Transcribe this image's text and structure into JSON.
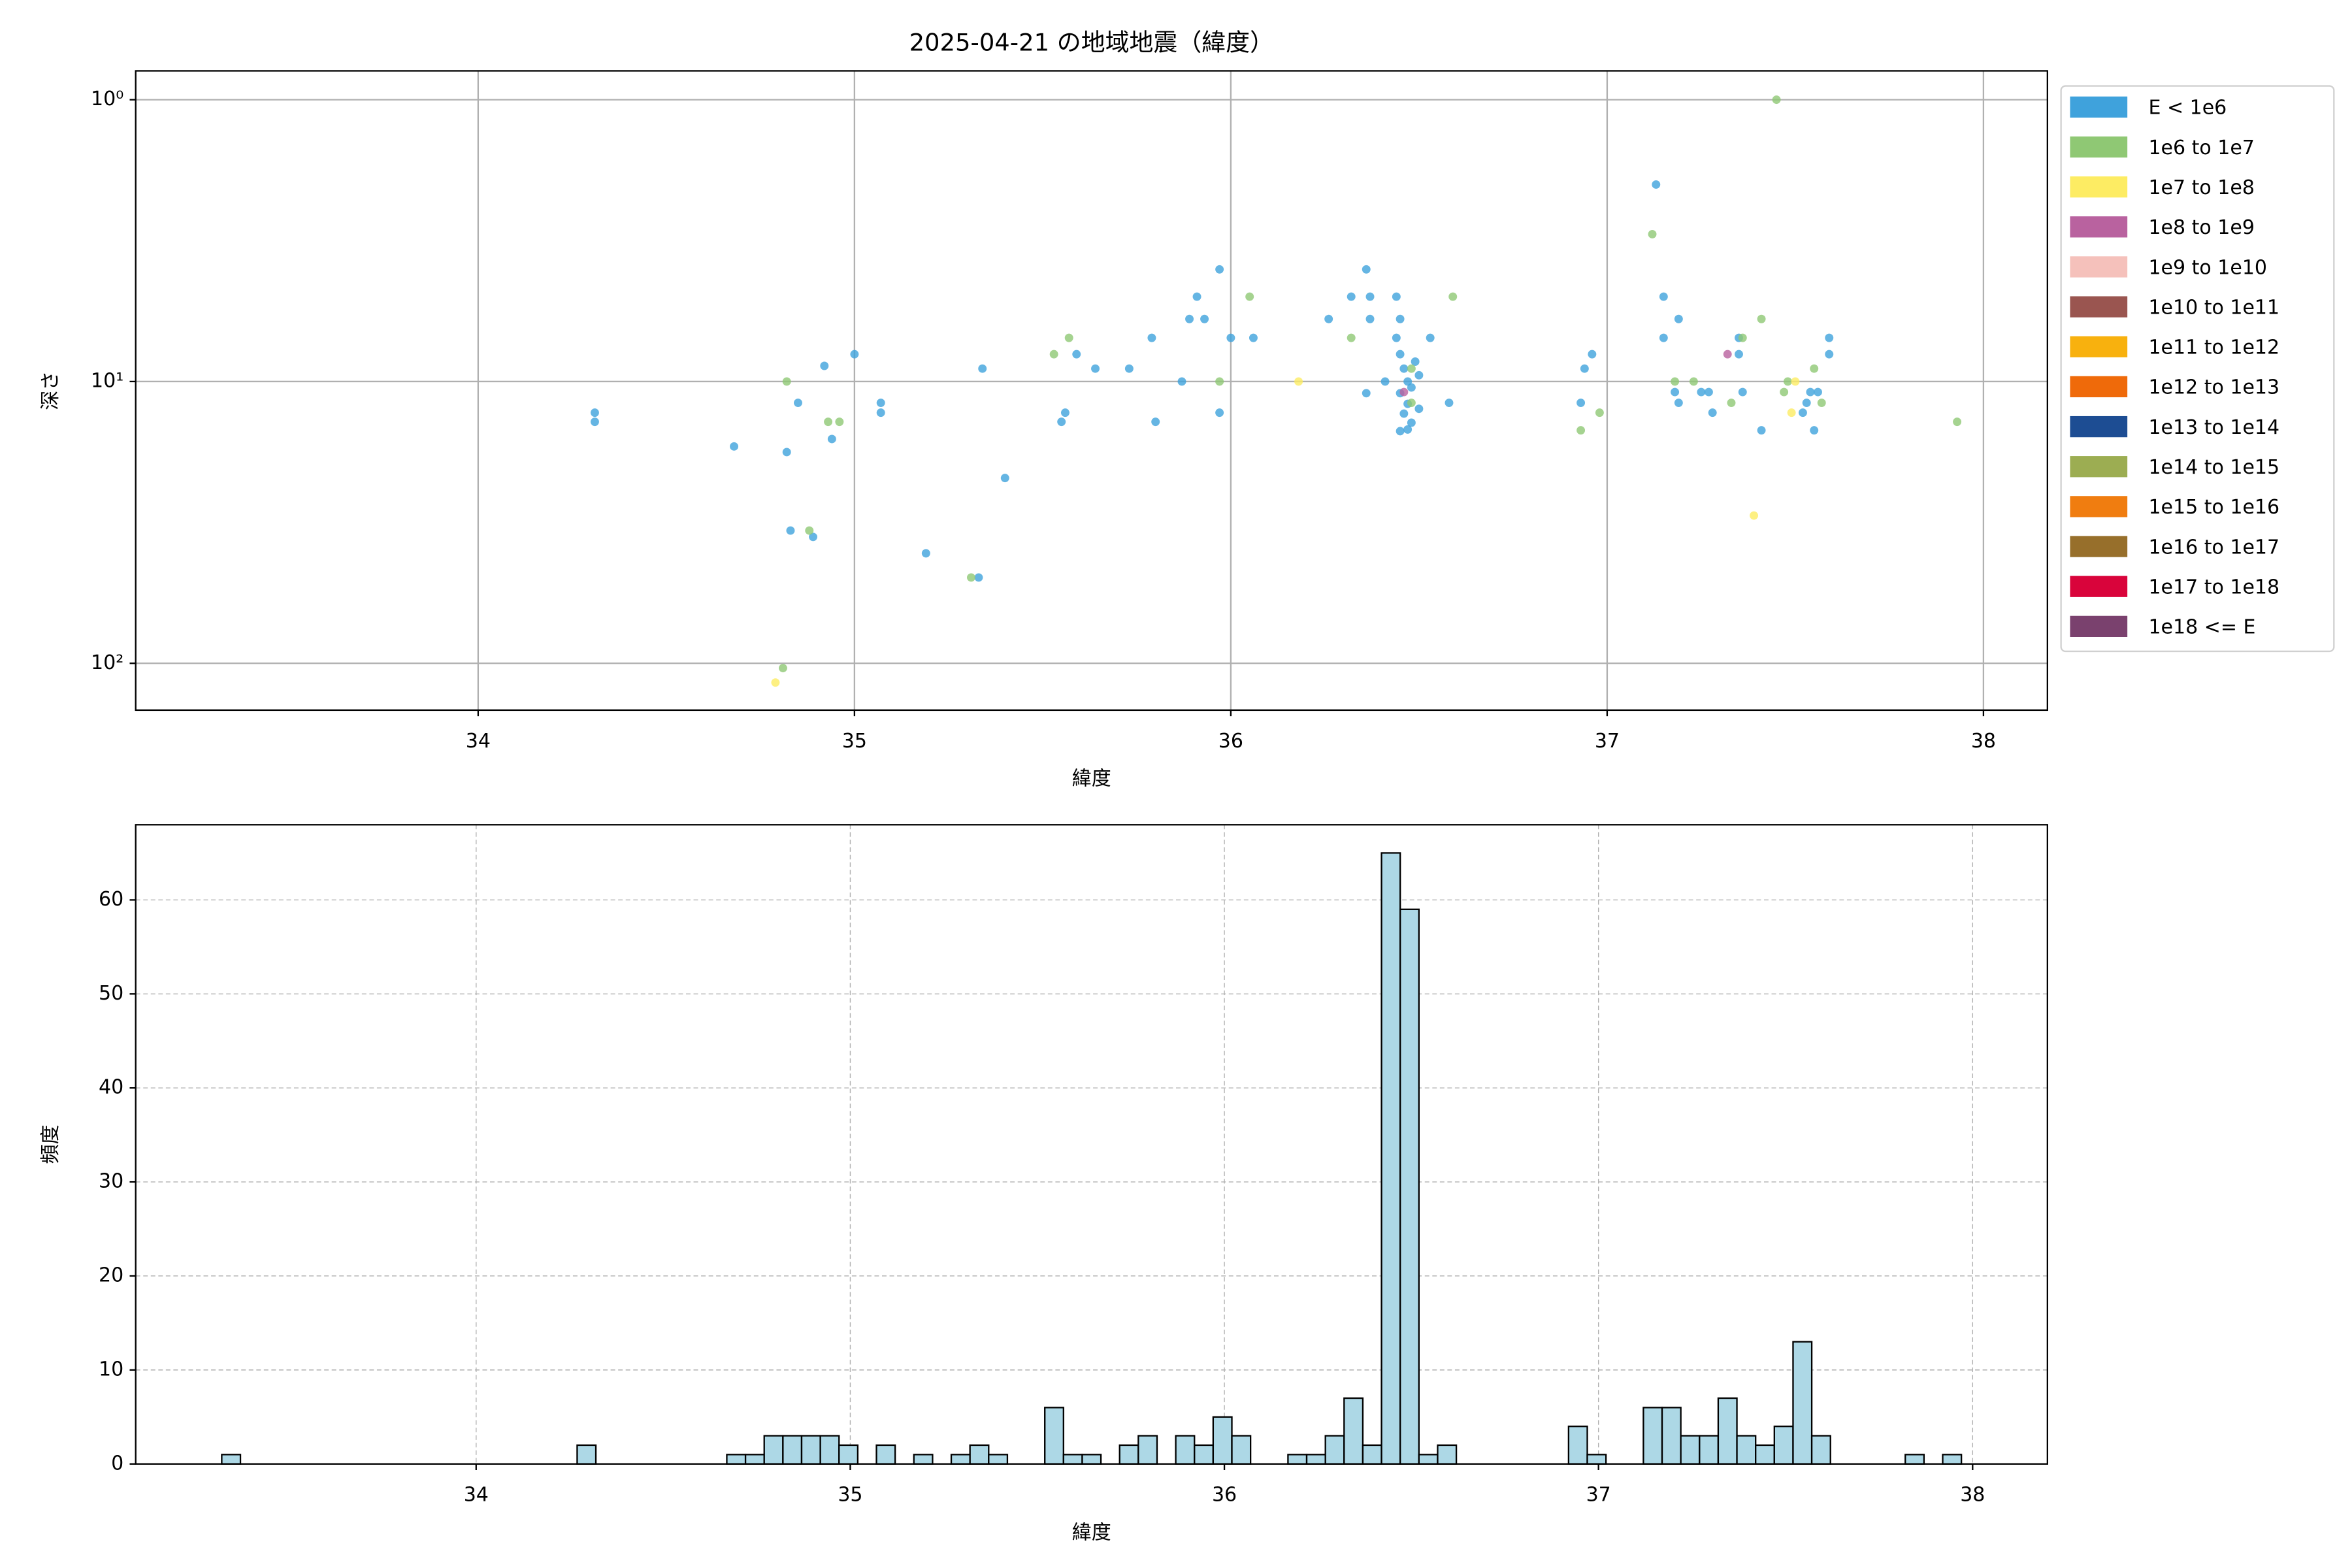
{
  "chart_data": [
    {
      "type": "scatter",
      "title": "2025-04-21 の地域地震（緯度）",
      "x_label": "緯度",
      "y_label": "深さ",
      "xlim": [
        33.09,
        38.17
      ],
      "xticks": [
        34,
        35,
        36,
        37,
        38
      ],
      "ylim": [
        0.79,
        146.6
      ],
      "y_scale": "log",
      "y_inverted": true,
      "yticks": [
        {
          "value": 1,
          "label": "10⁰"
        },
        {
          "value": 10,
          "label": "10¹"
        },
        {
          "value": 100,
          "label": "10²"
        }
      ],
      "grid": true,
      "legend": "outside upper right",
      "series": [
        {
          "name": "E < 1e6",
          "color": "#3fa2dc",
          "x": [
            34.31,
            34.31,
            34.68,
            34.82,
            34.85,
            34.83,
            34.89,
            34.92,
            34.94,
            35.0,
            35.07,
            35.07,
            35.19,
            35.33,
            35.34,
            35.4,
            35.55,
            35.56,
            35.59,
            35.64,
            35.73,
            35.79,
            35.8,
            35.87,
            35.89,
            35.91,
            35.93,
            35.97,
            35.97,
            36.0,
            36.06,
            36.26,
            36.32,
            36.36,
            36.37,
            36.37,
            36.36,
            36.41,
            36.44,
            36.45,
            36.44,
            36.45,
            36.46,
            36.47,
            36.45,
            36.47,
            36.46,
            36.48,
            36.45,
            36.49,
            36.5,
            36.48,
            36.47,
            36.5,
            36.53,
            36.58,
            36.93,
            36.94,
            36.96,
            37.13,
            37.15,
            37.15,
            37.19,
            37.18,
            37.19,
            37.25,
            37.27,
            37.28,
            37.35,
            37.35,
            37.36,
            37.41,
            37.52,
            37.53,
            37.54,
            37.55,
            37.56,
            37.59,
            37.59
          ],
          "values": [
            12.9,
            13.9,
            17.0,
            17.8,
            11.9,
            33.8,
            35.6,
            8.8,
            16.0,
            8.0,
            11.9,
            12.9,
            40.7,
            49.6,
            9.0,
            22.0,
            13.9,
            12.9,
            8.0,
            9.0,
            9.0,
            7.0,
            13.9,
            10,
            6.0,
            5.0,
            6.0,
            4.0,
            12.9,
            7.0,
            7.0,
            6.0,
            5.0,
            4.0,
            5.0,
            6.0,
            11.0,
            10,
            5.0,
            6.0,
            7.0,
            8.0,
            9.0,
            10,
            11.0,
            12.0,
            13.0,
            14.0,
            15.0,
            8.5,
            12.5,
            10.5,
            14.8,
            9.5,
            7.0,
            11.9,
            11.9,
            9.0,
            8.0,
            2.0,
            5.0,
            7.0,
            6.0,
            10.9,
            11.9,
            10.9,
            10.9,
            12.9,
            7.0,
            8.0,
            10.9,
            14.9,
            12.9,
            11.9,
            10.9,
            14.9,
            10.9,
            7.0,
            8.0
          ]
        },
        {
          "name": "1e6 to 1e7",
          "color": "#8fc874",
          "x": [
            34.82,
            34.93,
            34.96,
            34.88,
            34.81,
            35.31,
            35.53,
            35.57,
            35.97,
            36.05,
            36.32,
            36.48,
            36.48,
            36.59,
            36.93,
            36.98,
            37.12,
            37.18,
            37.23,
            37.33,
            37.36,
            37.41,
            37.45,
            37.47,
            37.48,
            37.55,
            37.57,
            37.93
          ],
          "values": [
            10,
            13.9,
            13.9,
            33.8,
            104,
            49.6,
            8.0,
            7.0,
            10,
            5.0,
            7.0,
            9.0,
            11.9,
            5.0,
            14.9,
            12.9,
            3.0,
            10,
            10,
            11.9,
            7.0,
            6.0,
            1.0,
            10.9,
            10,
            9.0,
            11.9,
            13.9
          ]
        },
        {
          "name": "1e7 to 1e8",
          "color": "#fdec63",
          "x": [
            34.79,
            36.18,
            37.39,
            37.49,
            37.5
          ],
          "values": [
            117,
            10,
            29.9,
            12.9,
            10
          ]
        },
        {
          "name": "1e8 to 1e9",
          "color": "#b9629f",
          "x": [
            37.32,
            36.46
          ],
          "values": [
            8.0,
            10.9
          ]
        },
        {
          "name": "1e9 to 1e10",
          "color": "#f5c1bb",
          "x": [],
          "values": []
        },
        {
          "name": "1e10 to 1e11",
          "color": "#9a5550",
          "x": [],
          "values": []
        },
        {
          "name": "1e11 to 1e12",
          "color": "#f8b10e",
          "x": [],
          "values": []
        },
        {
          "name": "1e12 to 1e13",
          "color": "#ef6a0a",
          "x": [],
          "values": []
        },
        {
          "name": "1e13 to 1e14",
          "color": "#1d4d93",
          "x": [],
          "values": []
        },
        {
          "name": "1e14 to 1e15",
          "color": "#9cad52",
          "x": [],
          "values": []
        },
        {
          "name": "1e15 to 1e16",
          "color": "#f07d10",
          "x": [],
          "values": []
        },
        {
          "name": "1e16 to 1e17",
          "color": "#976f2b",
          "x": [],
          "values": []
        },
        {
          "name": "1e17 to 1e18",
          "color": "#d9043b",
          "x": [],
          "values": []
        },
        {
          "name": "1e18 <= E",
          "color": "#7a416e",
          "x": [],
          "values": []
        }
      ]
    },
    {
      "type": "histogram",
      "x_label": "緯度",
      "y_label": "頻度",
      "color": "#add8e6",
      "edge_color": "#000000",
      "xlim": [
        33.09,
        38.2
      ],
      "xticks": [
        34,
        35,
        36,
        37,
        38
      ],
      "ylim": [
        0,
        68
      ],
      "yticks": [
        0,
        10,
        20,
        30,
        40,
        50,
        60
      ],
      "grid": true,
      "bins": [
        33.32,
        33.37,
        33.42,
        33.47,
        33.52,
        33.57,
        33.62,
        33.67,
        33.72,
        33.77,
        33.82,
        33.87,
        33.92,
        33.97,
        34.02,
        34.07,
        34.12,
        34.17,
        34.22,
        34.27,
        34.32,
        34.37,
        34.42,
        34.47,
        34.52,
        34.57,
        34.62,
        34.67,
        34.72,
        34.77,
        34.82,
        34.87,
        34.92,
        34.97,
        35.02,
        35.07,
        35.12,
        35.17,
        35.22,
        35.27,
        35.32,
        35.37,
        35.42,
        35.47,
        35.52,
        35.57,
        35.62,
        35.67,
        35.72,
        35.77,
        35.82,
        35.87,
        35.92,
        35.97,
        36.02,
        36.07,
        36.12,
        36.17,
        36.22,
        36.27,
        36.32,
        36.37,
        36.42,
        36.47,
        36.52,
        36.57,
        36.62,
        36.67,
        36.72,
        36.77,
        36.82,
        36.87,
        36.92,
        36.97,
        37.02,
        37.07,
        37.12,
        37.17,
        37.22,
        37.27,
        37.32,
        37.37,
        37.42,
        37.47,
        37.52,
        37.57,
        37.62,
        37.67,
        37.72,
        37.77,
        37.82,
        37.87,
        37.92,
        37.97
      ],
      "values": [
        1,
        0,
        0,
        0,
        0,
        0,
        0,
        0,
        0,
        0,
        0,
        0,
        0,
        0,
        0,
        0,
        0,
        0,
        0,
        2,
        0,
        0,
        0,
        0,
        0,
        0,
        0,
        1,
        1,
        3,
        3,
        3,
        3,
        2,
        0,
        2,
        0,
        1,
        0,
        1,
        2,
        1,
        0,
        0,
        6,
        1,
        1,
        0,
        2,
        3,
        0,
        3,
        2,
        5,
        3,
        0,
        0,
        1,
        1,
        3,
        7,
        2,
        65,
        59,
        1,
        2,
        0,
        0,
        0,
        0,
        0,
        0,
        4,
        1,
        0,
        0,
        6,
        6,
        3,
        3,
        7,
        3,
        2,
        4,
        13,
        3,
        0,
        0,
        0,
        0,
        1,
        0,
        1
      ]
    }
  ]
}
